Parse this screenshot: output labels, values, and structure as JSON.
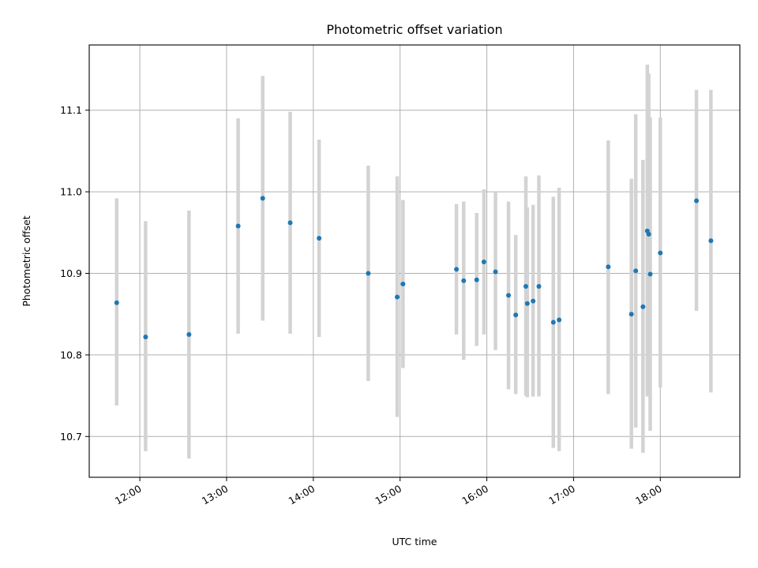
{
  "chart_data": {
    "type": "scatter",
    "title": "Photometric offset variation",
    "xlabel": "UTC time",
    "ylabel": "Photometric offset",
    "grid": true,
    "xlim": [
      "11:25",
      "18:55"
    ],
    "ylim": [
      10.65,
      11.18
    ],
    "x_ticks": [
      "12:00",
      "13:00",
      "14:00",
      "15:00",
      "16:00",
      "17:00",
      "18:00"
    ],
    "y_ticks": [
      "10.7",
      "10.8",
      "10.9",
      "11.0",
      "11.1"
    ],
    "colors": {
      "point": "#1f77b4",
      "errorbar": "#d3d3d3",
      "grid": "#b0b0b0"
    },
    "points": [
      {
        "x": "11:44",
        "y": 10.864,
        "lo": 10.738,
        "hi": 10.992
      },
      {
        "x": "12:04",
        "y": 10.822,
        "lo": 10.682,
        "hi": 10.964
      },
      {
        "x": "12:34",
        "y": 10.825,
        "lo": 10.673,
        "hi": 10.977
      },
      {
        "x": "13:08",
        "y": 10.958,
        "lo": 10.826,
        "hi": 11.09
      },
      {
        "x": "13:25",
        "y": 10.992,
        "lo": 10.842,
        "hi": 11.142
      },
      {
        "x": "13:44",
        "y": 10.962,
        "lo": 10.826,
        "hi": 11.098
      },
      {
        "x": "14:04",
        "y": 10.943,
        "lo": 10.822,
        "hi": 11.064
      },
      {
        "x": "14:38",
        "y": 10.9,
        "lo": 10.768,
        "hi": 11.032
      },
      {
        "x": "14:58",
        "y": 10.871,
        "lo": 10.724,
        "hi": 11.019
      },
      {
        "x": "15:02",
        "y": 10.887,
        "lo": 10.784,
        "hi": 10.99
      },
      {
        "x": "15:39",
        "y": 10.905,
        "lo": 10.825,
        "hi": 10.985
      },
      {
        "x": "15:44",
        "y": 10.891,
        "lo": 10.794,
        "hi": 10.988
      },
      {
        "x": "15:53",
        "y": 10.892,
        "lo": 10.811,
        "hi": 10.974
      },
      {
        "x": "15:58",
        "y": 10.914,
        "lo": 10.825,
        "hi": 11.003
      },
      {
        "x": "16:06",
        "y": 10.902,
        "lo": 10.806,
        "hi": 10.999
      },
      {
        "x": "16:15",
        "y": 10.873,
        "lo": 10.758,
        "hi": 10.988
      },
      {
        "x": "16:20",
        "y": 10.849,
        "lo": 10.752,
        "hi": 10.947
      },
      {
        "x": "16:27",
        "y": 10.884,
        "lo": 10.75,
        "hi": 11.019
      },
      {
        "x": "16:28",
        "y": 10.863,
        "lo": 10.748,
        "hi": 10.981
      },
      {
        "x": "16:32",
        "y": 10.866,
        "lo": 10.749,
        "hi": 10.984
      },
      {
        "x": "16:36",
        "y": 10.884,
        "lo": 10.749,
        "hi": 11.02
      },
      {
        "x": "16:46",
        "y": 10.84,
        "lo": 10.686,
        "hi": 10.994
      },
      {
        "x": "16:50",
        "y": 10.843,
        "lo": 10.682,
        "hi": 11.005
      },
      {
        "x": "17:24",
        "y": 10.908,
        "lo": 10.752,
        "hi": 11.063
      },
      {
        "x": "17:40",
        "y": 10.85,
        "lo": 10.685,
        "hi": 11.016
      },
      {
        "x": "17:43",
        "y": 10.903,
        "lo": 10.711,
        "hi": 11.095
      },
      {
        "x": "17:48",
        "y": 10.859,
        "lo": 10.68,
        "hi": 11.039
      },
      {
        "x": "17:51",
        "y": 10.952,
        "lo": 10.749,
        "hi": 11.156
      },
      {
        "x": "17:52",
        "y": 10.948,
        "lo": 10.75,
        "hi": 11.145
      },
      {
        "x": "17:53",
        "y": 10.899,
        "lo": 10.707,
        "hi": 11.091
      },
      {
        "x": "18:00",
        "y": 10.925,
        "lo": 10.76,
        "hi": 11.091
      },
      {
        "x": "18:25",
        "y": 10.989,
        "lo": 10.854,
        "hi": 11.125
      },
      {
        "x": "18:35",
        "y": 10.94,
        "lo": 10.754,
        "hi": 11.125
      }
    ]
  }
}
